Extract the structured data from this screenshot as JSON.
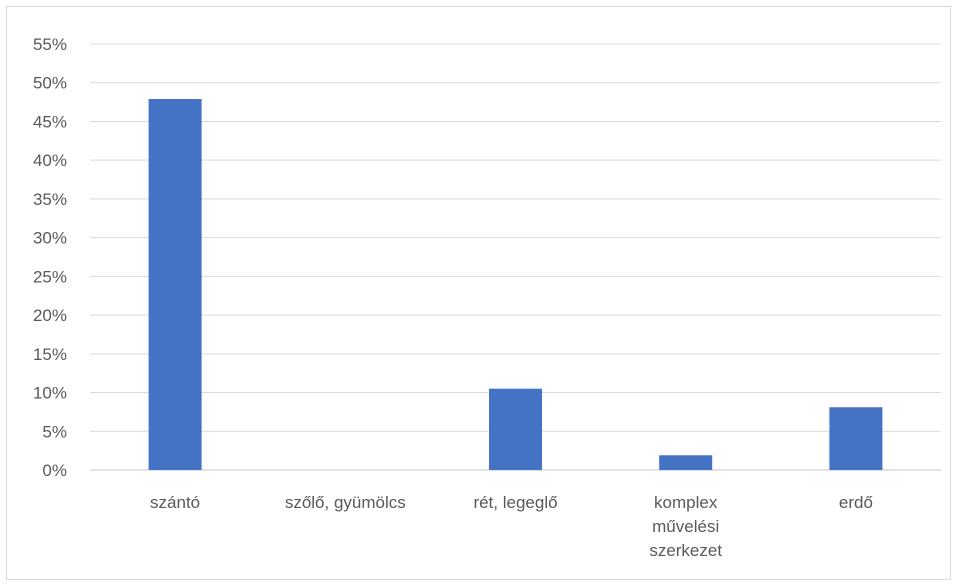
{
  "chart_data": {
    "type": "bar",
    "categories": [
      "szántó",
      "szőlő, gyümölcs",
      "rét, legeglő",
      "komplex művelési szerkezet",
      "erdő"
    ],
    "category_lines": [
      [
        "szántó"
      ],
      [
        "szőlő, gyümölcs"
      ],
      [
        "rét, legeglő"
      ],
      [
        "komplex",
        "művelési",
        "szerkezet"
      ],
      [
        "erdő"
      ]
    ],
    "series": [
      {
        "values": [
          0.479,
          0.0,
          0.105,
          0.019,
          0.081
        ]
      }
    ],
    "ylim": [
      0,
      0.55
    ],
    "y_ticks": [
      0,
      0.05,
      0.1,
      0.15,
      0.2,
      0.25,
      0.3,
      0.35,
      0.4,
      0.45,
      0.5,
      0.55
    ],
    "y_tick_labels": [
      "0%",
      "5%",
      "10%",
      "15%",
      "20%",
      "25%",
      "30%",
      "35%",
      "40%",
      "45%",
      "50%",
      "55%"
    ],
    "gridlines": true,
    "legend": "none",
    "bar_color": "#4472c4",
    "gridline_color": "#d9d9d9",
    "text_color": "#595959"
  }
}
